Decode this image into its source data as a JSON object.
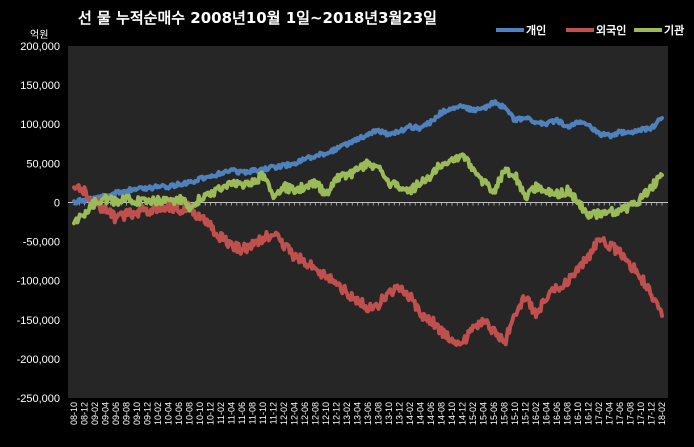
{
  "chart_data": {
    "type": "line",
    "title": "선 물 누적순매수 2008년10월 1일~2018년3월23일",
    "unit": "억원",
    "xlabel": "",
    "ylabel": "",
    "ylim": [
      -250000,
      200000
    ],
    "yticks": [
      200000,
      150000,
      100000,
      50000,
      0,
      -50000,
      -100000,
      -150000,
      -200000,
      -250000
    ],
    "ytick_labels": [
      "200,000",
      "150,000",
      "100,000",
      "50,000",
      "0",
      "-50,000",
      "-100,000",
      "-150,000",
      "-200,000",
      "-250,000"
    ],
    "x": [
      "08-10",
      "08-12",
      "09-02",
      "09-04",
      "09-06",
      "09-08",
      "09-10",
      "09-12",
      "10-02",
      "10-04",
      "10-06",
      "10-08",
      "10-10",
      "10-12",
      "11-02",
      "11-04",
      "11-06",
      "11-08",
      "11-10",
      "11-12",
      "12-02",
      "12-04",
      "12-06",
      "12-08",
      "12-10",
      "12-12",
      "13-02",
      "13-04",
      "13-06",
      "13-08",
      "13-10",
      "13-12",
      "14-02",
      "14-04",
      "14-06",
      "14-08",
      "14-10",
      "14-12",
      "15-02",
      "15-04",
      "15-06",
      "15-08",
      "15-10",
      "15-12",
      "16-02",
      "16-04",
      "16-06",
      "16-08",
      "16-10",
      "16-12",
      "17-02",
      "17-04",
      "17-06",
      "17-08",
      "17-10",
      "17-12",
      "18-02"
    ],
    "legend_position": "top-right",
    "grid": false,
    "background": "#262626",
    "series": [
      {
        "name": "개인",
        "color": "#4f81bd",
        "values": [
          0,
          3000,
          5000,
          8000,
          12000,
          15000,
          17000,
          18000,
          20000,
          20000,
          23000,
          25000,
          30000,
          32000,
          38000,
          42000,
          38000,
          40000,
          42000,
          45000,
          47000,
          50000,
          55000,
          60000,
          63000,
          68000,
          75000,
          80000,
          88000,
          92000,
          87000,
          90000,
          97000,
          95000,
          103000,
          115000,
          120000,
          123000,
          118000,
          120000,
          128000,
          122000,
          105000,
          108000,
          102000,
          100000,
          105000,
          96000,
          102000,
          100000,
          87000,
          85000,
          90000,
          88000,
          93000,
          95000,
          108000
        ]
      },
      {
        "name": "외국인",
        "color": "#c0504d",
        "values": [
          25000,
          15000,
          0,
          -10000,
          -20000,
          -15000,
          -12000,
          -10000,
          -8000,
          -5000,
          -10000,
          -5000,
          -20000,
          -30000,
          -45000,
          -55000,
          -60000,
          -55000,
          -45000,
          -40000,
          -55000,
          -70000,
          -75000,
          -85000,
          -95000,
          -105000,
          -115000,
          -125000,
          -135000,
          -130000,
          -115000,
          -110000,
          -120000,
          -145000,
          -150000,
          -165000,
          -175000,
          -180000,
          -160000,
          -150000,
          -165000,
          -180000,
          -140000,
          -120000,
          -145000,
          -120000,
          -110000,
          -100000,
          -85000,
          -70000,
          -45000,
          -55000,
          -65000,
          -80000,
          -95000,
          -120000,
          -145000
        ]
      },
      {
        "name": "기관",
        "color": "#9bbb59",
        "values": [
          -25000,
          -15000,
          0,
          5000,
          0,
          5000,
          2000,
          0,
          3000,
          0,
          5000,
          -5000,
          5000,
          10000,
          20000,
          25000,
          22000,
          25000,
          35000,
          10000,
          20000,
          15000,
          20000,
          25000,
          10000,
          30000,
          35000,
          40000,
          50000,
          45000,
          25000,
          20000,
          15000,
          25000,
          35000,
          50000,
          55000,
          60000,
          45000,
          25000,
          15000,
          40000,
          35000,
          5000,
          20000,
          15000,
          10000,
          15000,
          0,
          -15000,
          -15000,
          -12000,
          -10000,
          -5000,
          5000,
          20000,
          35000
        ]
      }
    ]
  }
}
